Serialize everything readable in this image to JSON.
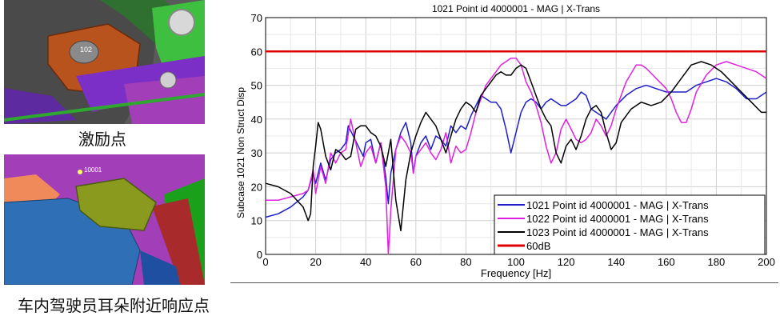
{
  "captions": {
    "excitation_point": "激励点",
    "response_point": "车内驾驶员耳朵附近响应点"
  },
  "image_labels": {
    "top_marker": "102",
    "bottom_marker": "10001"
  },
  "colors": {
    "s1": "#1f1fc8",
    "s2": "#e020e0",
    "s3": "#000000",
    "ref": "#e00000"
  },
  "chart_data": {
    "type": "line",
    "title": "1021 Point id 4000001 - MAG | X-Trans",
    "xlabel": "Frequency [Hz]",
    "ylabel": "Subcase 1021 Non Struct Disp",
    "xlim": [
      0,
      200
    ],
    "ylim": [
      0,
      70
    ],
    "xticks": [
      0,
      20,
      40,
      60,
      80,
      100,
      120,
      140,
      160,
      180,
      200
    ],
    "yticks": [
      0,
      10,
      20,
      30,
      40,
      50,
      60,
      70
    ],
    "grid": true,
    "legend_position": "bottom-right",
    "series": [
      {
        "name": "1021 Point id 4000001 - MAG | X-Trans",
        "color": "#1f1fc8",
        "points": [
          [
            0,
            11
          ],
          [
            5,
            12
          ],
          [
            10,
            14
          ],
          [
            15,
            17
          ],
          [
            17,
            19
          ],
          [
            19,
            24
          ],
          [
            20,
            21
          ],
          [
            22,
            27
          ],
          [
            24,
            22
          ],
          [
            26,
            28
          ],
          [
            28,
            30
          ],
          [
            30,
            31
          ],
          [
            32,
            33
          ],
          [
            33,
            38
          ],
          [
            35,
            35
          ],
          [
            37,
            32
          ],
          [
            39,
            29
          ],
          [
            40,
            33
          ],
          [
            42,
            34
          ],
          [
            44,
            27
          ],
          [
            46,
            33
          ],
          [
            48,
            23
          ],
          [
            49,
            15
          ],
          [
            50,
            24
          ],
          [
            52,
            31
          ],
          [
            54,
            36
          ],
          [
            56,
            39
          ],
          [
            58,
            33
          ],
          [
            59,
            24
          ],
          [
            60,
            29
          ],
          [
            62,
            33
          ],
          [
            64,
            35
          ],
          [
            66,
            31
          ],
          [
            68,
            35
          ],
          [
            70,
            34
          ],
          [
            72,
            32
          ],
          [
            74,
            38
          ],
          [
            76,
            36
          ],
          [
            78,
            38
          ],
          [
            80,
            37
          ],
          [
            82,
            41
          ],
          [
            84,
            44
          ],
          [
            86,
            47
          ],
          [
            88,
            46
          ],
          [
            90,
            45
          ],
          [
            92,
            45
          ],
          [
            94,
            43
          ],
          [
            96,
            37
          ],
          [
            98,
            30
          ],
          [
            100,
            36
          ],
          [
            102,
            42
          ],
          [
            104,
            45
          ],
          [
            106,
            46
          ],
          [
            108,
            45
          ],
          [
            110,
            43
          ],
          [
            112,
            45
          ],
          [
            114,
            46
          ],
          [
            116,
            45
          ],
          [
            118,
            44
          ],
          [
            120,
            44
          ],
          [
            122,
            45
          ],
          [
            124,
            46
          ],
          [
            126,
            48
          ],
          [
            128,
            47
          ],
          [
            130,
            43
          ],
          [
            132,
            42
          ],
          [
            134,
            41
          ],
          [
            136,
            40
          ],
          [
            138,
            42
          ],
          [
            140,
            44
          ],
          [
            144,
            47
          ],
          [
            148,
            49
          ],
          [
            152,
            50
          ],
          [
            156,
            49
          ],
          [
            160,
            48
          ],
          [
            164,
            48
          ],
          [
            168,
            48
          ],
          [
            172,
            50
          ],
          [
            176,
            51
          ],
          [
            180,
            52
          ],
          [
            184,
            51
          ],
          [
            188,
            49
          ],
          [
            192,
            46
          ],
          [
            196,
            46
          ],
          [
            200,
            48
          ]
        ]
      },
      {
        "name": "1022 Point id 4000001 - MAG | X-Trans",
        "color": "#e020e0",
        "points": [
          [
            0,
            16
          ],
          [
            5,
            16
          ],
          [
            10,
            17
          ],
          [
            15,
            18
          ],
          [
            17,
            19
          ],
          [
            19,
            25
          ],
          [
            20,
            18
          ],
          [
            22,
            26
          ],
          [
            24,
            21
          ],
          [
            26,
            30
          ],
          [
            28,
            27
          ],
          [
            30,
            30
          ],
          [
            32,
            31
          ],
          [
            34,
            40
          ],
          [
            36,
            33
          ],
          [
            38,
            26
          ],
          [
            40,
            30
          ],
          [
            42,
            32
          ],
          [
            44,
            27
          ],
          [
            46,
            33
          ],
          [
            48,
            20
          ],
          [
            49,
            0
          ],
          [
            50,
            13
          ],
          [
            52,
            31
          ],
          [
            54,
            35
          ],
          [
            56,
            33
          ],
          [
            58,
            30
          ],
          [
            59,
            24
          ],
          [
            60,
            29
          ],
          [
            62,
            31
          ],
          [
            64,
            33
          ],
          [
            66,
            30
          ],
          [
            68,
            28
          ],
          [
            70,
            31
          ],
          [
            72,
            36
          ],
          [
            74,
            27
          ],
          [
            76,
            32
          ],
          [
            78,
            30
          ],
          [
            80,
            31
          ],
          [
            82,
            36
          ],
          [
            84,
            42
          ],
          [
            86,
            46
          ],
          [
            88,
            50
          ],
          [
            90,
            52
          ],
          [
            92,
            54
          ],
          [
            94,
            56
          ],
          [
            96,
            57
          ],
          [
            98,
            58
          ],
          [
            100,
            58
          ],
          [
            102,
            56
          ],
          [
            104,
            51
          ],
          [
            106,
            48
          ],
          [
            108,
            44
          ],
          [
            110,
            39
          ],
          [
            112,
            32
          ],
          [
            114,
            27
          ],
          [
            116,
            30
          ],
          [
            118,
            37
          ],
          [
            120,
            40
          ],
          [
            122,
            37
          ],
          [
            124,
            34
          ],
          [
            126,
            33
          ],
          [
            128,
            34
          ],
          [
            130,
            36
          ],
          [
            132,
            40
          ],
          [
            134,
            38
          ],
          [
            136,
            35
          ],
          [
            138,
            38
          ],
          [
            140,
            43
          ],
          [
            144,
            51
          ],
          [
            148,
            56
          ],
          [
            150,
            56
          ],
          [
            152,
            55
          ],
          [
            156,
            52
          ],
          [
            160,
            49
          ],
          [
            162,
            46
          ],
          [
            164,
            42
          ],
          [
            166,
            39
          ],
          [
            168,
            39
          ],
          [
            170,
            43
          ],
          [
            172,
            48
          ],
          [
            176,
            53
          ],
          [
            180,
            56
          ],
          [
            184,
            57
          ],
          [
            188,
            56
          ],
          [
            192,
            55
          ],
          [
            196,
            54
          ],
          [
            200,
            52
          ]
        ]
      },
      {
        "name": "1023 Point id 4000001 - MAG | X-Trans",
        "color": "#000000",
        "points": [
          [
            0,
            21
          ],
          [
            5,
            20
          ],
          [
            10,
            18
          ],
          [
            15,
            14
          ],
          [
            17,
            10
          ],
          [
            18,
            12
          ],
          [
            19,
            26
          ],
          [
            20,
            32
          ],
          [
            21,
            39
          ],
          [
            22,
            37
          ],
          [
            24,
            29
          ],
          [
            26,
            25
          ],
          [
            28,
            31
          ],
          [
            30,
            30
          ],
          [
            32,
            28
          ],
          [
            34,
            29
          ],
          [
            36,
            37
          ],
          [
            38,
            38
          ],
          [
            40,
            38
          ],
          [
            42,
            36
          ],
          [
            44,
            35
          ],
          [
            46,
            32
          ],
          [
            48,
            26
          ],
          [
            50,
            34
          ],
          [
            52,
            16
          ],
          [
            54,
            7
          ],
          [
            56,
            22
          ],
          [
            58,
            30
          ],
          [
            60,
            35
          ],
          [
            62,
            39
          ],
          [
            64,
            42
          ],
          [
            66,
            40
          ],
          [
            68,
            38
          ],
          [
            70,
            34
          ],
          [
            72,
            30
          ],
          [
            74,
            35
          ],
          [
            76,
            40
          ],
          [
            78,
            43
          ],
          [
            80,
            45
          ],
          [
            82,
            44
          ],
          [
            84,
            42
          ],
          [
            86,
            47
          ],
          [
            88,
            49
          ],
          [
            90,
            51
          ],
          [
            92,
            53
          ],
          [
            94,
            54
          ],
          [
            96,
            53
          ],
          [
            98,
            53
          ],
          [
            100,
            55
          ],
          [
            102,
            56
          ],
          [
            104,
            55
          ],
          [
            106,
            51
          ],
          [
            108,
            47
          ],
          [
            110,
            43
          ],
          [
            112,
            40
          ],
          [
            114,
            38
          ],
          [
            116,
            30
          ],
          [
            118,
            27
          ],
          [
            120,
            32
          ],
          [
            122,
            34
          ],
          [
            124,
            31
          ],
          [
            126,
            35
          ],
          [
            128,
            40
          ],
          [
            130,
            43
          ],
          [
            132,
            44
          ],
          [
            134,
            42
          ],
          [
            136,
            36
          ],
          [
            138,
            31
          ],
          [
            140,
            33
          ],
          [
            142,
            39
          ],
          [
            146,
            43
          ],
          [
            150,
            45
          ],
          [
            154,
            44
          ],
          [
            158,
            45
          ],
          [
            162,
            48
          ],
          [
            166,
            52
          ],
          [
            170,
            56
          ],
          [
            174,
            57
          ],
          [
            178,
            56
          ],
          [
            182,
            54
          ],
          [
            186,
            51
          ],
          [
            190,
            48
          ],
          [
            194,
            45
          ],
          [
            198,
            42
          ],
          [
            200,
            42
          ]
        ]
      },
      {
        "name": "60dB",
        "color": "#e00000",
        "points": [
          [
            0,
            60
          ],
          [
            200,
            60
          ]
        ]
      }
    ]
  }
}
